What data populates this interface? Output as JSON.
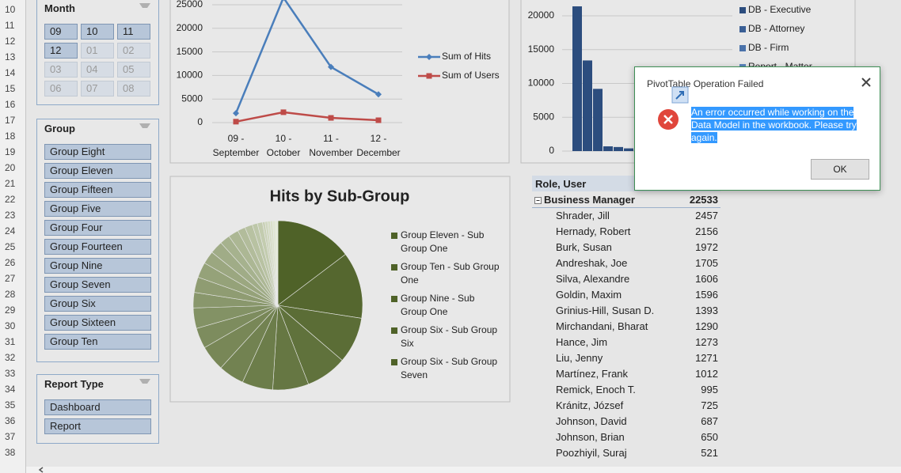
{
  "row_numbers": [
    10,
    11,
    12,
    13,
    14,
    15,
    16,
    17,
    18,
    19,
    20,
    21,
    22,
    23,
    24,
    25,
    26,
    27,
    28,
    29,
    30,
    31,
    32,
    33,
    34,
    35,
    36,
    37,
    38
  ],
  "slicers": [
    {
      "title": "Month",
      "items": [
        {
          "label": "09",
          "selected": true
        },
        {
          "label": "10",
          "selected": true
        },
        {
          "label": "11",
          "selected": true
        },
        {
          "label": "12",
          "selected": true
        },
        {
          "label": "01",
          "selected": false
        },
        {
          "label": "02",
          "selected": false
        },
        {
          "label": "03",
          "selected": false
        },
        {
          "label": "04",
          "selected": false
        },
        {
          "label": "05",
          "selected": false
        },
        {
          "label": "06",
          "selected": false
        },
        {
          "label": "07",
          "selected": false
        },
        {
          "label": "08",
          "selected": false
        }
      ]
    },
    {
      "title": "Group",
      "items": [
        {
          "label": "Group Eight",
          "selected": true
        },
        {
          "label": "Group Eleven",
          "selected": true
        },
        {
          "label": "Group Fifteen",
          "selected": true
        },
        {
          "label": "Group Five",
          "selected": true
        },
        {
          "label": "Group Four",
          "selected": true
        },
        {
          "label": "Group Fourteen",
          "selected": true
        },
        {
          "label": "Group Nine",
          "selected": true
        },
        {
          "label": "Group Seven",
          "selected": true
        },
        {
          "label": "Group Six",
          "selected": true
        },
        {
          "label": "Group Sixteen",
          "selected": true
        },
        {
          "label": "Group Ten",
          "selected": true
        }
      ]
    },
    {
      "title": "Report Type",
      "items": [
        {
          "label": "Dashboard",
          "selected": true
        },
        {
          "label": "Report",
          "selected": true
        }
      ]
    }
  ],
  "line_chart": {
    "type": "line",
    "categories": [
      "09 - September",
      "10 - October",
      "11 - November",
      "12 - December"
    ],
    "series": [
      {
        "name": "Sum of Hits",
        "color": "#4a7ebb",
        "values": [
          2000,
          26500,
          11800,
          6000
        ]
      },
      {
        "name": "Sum of Users",
        "color": "#be4b48",
        "values": [
          200,
          2200,
          1000,
          500
        ]
      }
    ],
    "ylim": [
      0,
      30000
    ],
    "yticks": [
      0,
      5000,
      10000,
      15000,
      20000,
      25000
    ],
    "grid": true
  },
  "bar_chart": {
    "type": "bar",
    "values": [
      21400,
      13400,
      9200,
      700,
      600,
      400
    ],
    "color": "#2c4d7e",
    "legend": [
      {
        "name": "DB - Executive",
        "color": "#2c4d7e"
      },
      {
        "name": "DB - Attorney",
        "color": "#3a5f95"
      },
      {
        "name": "DB - Firm",
        "color": "#4a72aa"
      },
      {
        "name": "Report - Matter",
        "color": "#5b86bf"
      }
    ],
    "ylim": [
      0,
      25000
    ],
    "yticks": [
      0,
      5000,
      10000,
      15000,
      20000
    ],
    "grid": true
  },
  "pie_chart": {
    "type": "pie",
    "title": "Hits by Sub-Group",
    "values": [
      15,
      13,
      9,
      8,
      7,
      6,
      5,
      5,
      4,
      4,
      3,
      3,
      3,
      2.5,
      2.5,
      2,
      2,
      1.5,
      1.5,
      1,
      1,
      0.5,
      0.5,
      0.5,
      0.5,
      0.5,
      0.5
    ],
    "legend": [
      "Group Eleven - Sub Group One",
      "Group Ten - Sub Group One",
      "Group Nine - Sub Group One",
      "Group Six - Sub Group Six",
      "Group Six - Sub Group Seven"
    ],
    "color_dark": "#4f6228",
    "color_light": "#e6ecd8"
  },
  "pivot": {
    "header": "Role, User",
    "group": {
      "label": "Business Manager",
      "total": 22533
    },
    "rows": [
      [
        "Shrader, Jill",
        2457
      ],
      [
        "Hernady, Robert",
        2156
      ],
      [
        "Burk, Susan",
        1972
      ],
      [
        "Andreshak, Joe",
        1705
      ],
      [
        "Silva, Alexandre",
        1606
      ],
      [
        "Goldin, Maxim",
        1596
      ],
      [
        "Grinius-Hill, Susan D.",
        1393
      ],
      [
        "Mirchandani, Bharat",
        1290
      ],
      [
        "Hance, Jim",
        1273
      ],
      [
        "Liu, Jenny",
        1271
      ],
      [
        "Martínez, Frank",
        1012
      ],
      [
        "Remick, Enoch T.",
        995
      ],
      [
        "Kránitz, József",
        725
      ],
      [
        "Johnson, David",
        687
      ],
      [
        "Johnson, Brian",
        650
      ],
      [
        "Poozhiyil, Suraj",
        521
      ]
    ]
  },
  "dialog": {
    "title": "PivotTable Operation Failed",
    "message": "An error occurred while working on the Data Model in the workbook. Please try again.",
    "button": "OK"
  }
}
